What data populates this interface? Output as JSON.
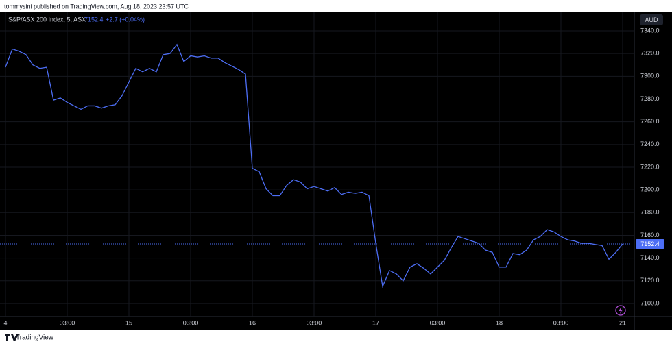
{
  "header": {
    "publisher": "tommysini published on TradingView.com, Aug 18, 2023 23:57 UTC"
  },
  "chart_data": {
    "type": "line",
    "title": "S&P/ASX 200 Index, 5, ASX",
    "change": "+2.7 (+0.04%)",
    "currency": "AUD",
    "categories": [
      "4",
      null,
      null,
      null,
      null,
      null,
      null,
      null,
      null,
      "03:00",
      null,
      null,
      null,
      null,
      null,
      null,
      null,
      null,
      "15",
      null,
      null,
      null,
      null,
      null,
      null,
      null,
      null,
      "03:00",
      null,
      null,
      null,
      null,
      null,
      null,
      null,
      null,
      "16",
      null,
      null,
      null,
      null,
      null,
      null,
      null,
      null,
      "03:00",
      null,
      null,
      null,
      null,
      null,
      null,
      null,
      null,
      "17",
      null,
      null,
      null,
      null,
      null,
      null,
      null,
      null,
      "03:00",
      null,
      null,
      null,
      null,
      null,
      null,
      null,
      null,
      "18",
      null,
      null,
      null,
      null,
      null,
      null,
      null,
      null,
      "03:00",
      null,
      null,
      null,
      null,
      null,
      null,
      null,
      null,
      "21"
    ],
    "series": [
      {
        "color": "#4d6ef5",
        "values": [
          7308,
          7324,
          7322,
          7319,
          7310,
          7307,
          7308,
          7279,
          7281,
          7277,
          7274,
          7271,
          7274,
          7274,
          7272,
          7274,
          7275,
          7283,
          7295,
          7307,
          7304,
          7307,
          7304,
          7319,
          7320,
          7328,
          7313,
          7318,
          7317,
          7318,
          7316,
          7316,
          7312,
          7309,
          7306,
          7302,
          7219,
          7216,
          7201,
          7195,
          7195,
          7204,
          7209,
          7207,
          7201,
          7203,
          7201,
          7199,
          7202,
          7196,
          7198,
          7197,
          7198,
          7195,
          7153,
          7115,
          7129,
          7126,
          7120,
          7132,
          7135,
          7131,
          7126,
          7132,
          7138,
          7149,
          7159,
          7157,
          7155,
          7153,
          7147,
          7145,
          7132,
          7132,
          7144,
          7143,
          7147,
          7156,
          7159,
          7165,
          7163,
          7159,
          7156,
          7155,
          7153,
          7153,
          7152,
          7151,
          7139,
          7145,
          7152.4
        ]
      }
    ],
    "ylim": [
      7088.5,
      7356.3
    ],
    "yticks": [
      {
        "value": 7100,
        "label": "7100.0"
      },
      {
        "value": 7120,
        "label": "7120.0"
      },
      {
        "value": 7140,
        "label": "7140.0"
      },
      {
        "value": 7160,
        "label": "7160.0"
      },
      {
        "value": 7180,
        "label": "7180.0"
      },
      {
        "value": 7200,
        "label": "7200.0"
      },
      {
        "value": 7220,
        "label": "7220.0"
      },
      {
        "value": 7240,
        "label": "7240.0"
      },
      {
        "value": 7260,
        "label": "7260.0"
      },
      {
        "value": 7280,
        "label": "7280.0"
      },
      {
        "value": 7300,
        "label": "7300.0"
      },
      {
        "value": 7320,
        "label": "7320.0"
      },
      {
        "value": 7340,
        "label": "7340.0"
      }
    ],
    "grid": true
  },
  "footer": {
    "brand": "TradingView"
  }
}
